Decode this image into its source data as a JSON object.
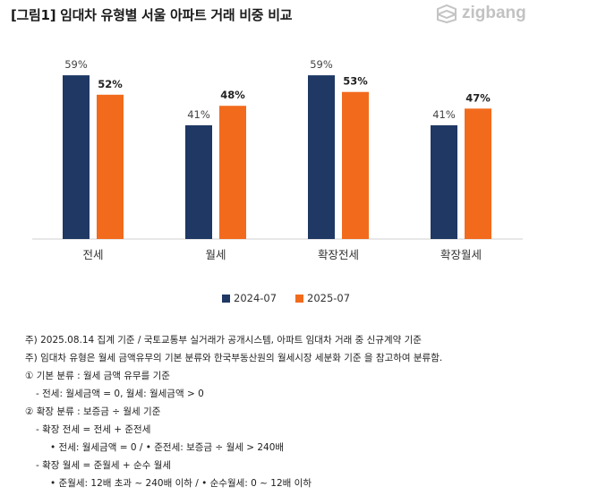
{
  "title": "[그림1] 임대차 유형별 서울 아파트 거래 비중 비교",
  "logo": {
    "text": "zigbang",
    "icon": "zigbang-logo-icon"
  },
  "chart_data": {
    "type": "bar",
    "categories": [
      "전세",
      "월세",
      "확장전세",
      "확장월세"
    ],
    "series": [
      {
        "name": "2024-07",
        "color": "#1f3864",
        "values": [
          59,
          41,
          59,
          41
        ],
        "labels": [
          "59%",
          "41%",
          "59%",
          "41%"
        ]
      },
      {
        "name": "2025-07",
        "color": "#f26b1d",
        "values": [
          52,
          48,
          53,
          47
        ],
        "labels": [
          "52%",
          "48%",
          "53%",
          "47%"
        ]
      }
    ],
    "ylim": [
      0,
      70
    ],
    "grid": false,
    "legend": "bottom"
  },
  "notes": [
    "주) 2025.08.14 집계 기준 / 국토교통부 실거래가 공개시스템, 아파트 임대차 거래 중 신규계약 기준",
    "주) 임대차 유형은 월세 금액유무의 기본 분류와 한국부동산원의 월세시장 세분화 기준 을 참고하여 분류함.",
    "① 기본 분류 : 월세 금액 유무를 기준",
    "- 전세: 월세금액 = 0, 월세: 월세금액 > 0",
    "② 확장 분류 : 보증금 ÷ 월세 기준",
    "- 확장 전세 = 전세 + 준전세",
    "• 전세: 월세금액 = 0 / • 준전세: 보증금 ÷ 월세 > 240배",
    "- 확장 월세 = 준월세 + 순수 월세",
    "• 준월세: 12배 초과 ~ 240배 이하 / • 순수월세: 0 ~ 12배 이하"
  ]
}
